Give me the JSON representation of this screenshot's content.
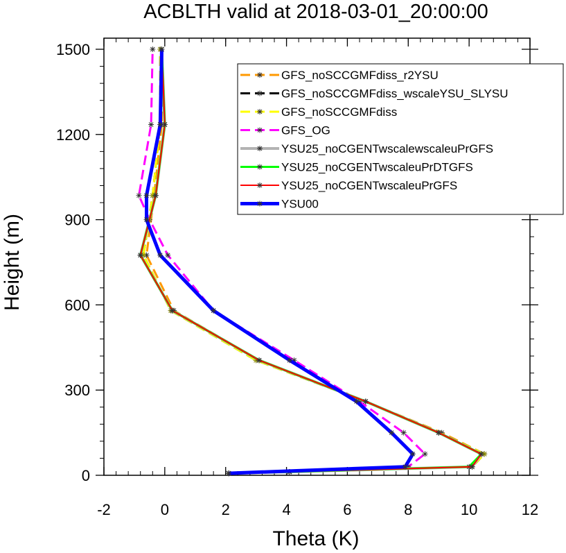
{
  "chart_data": {
    "type": "line",
    "title": "ACBLTH valid at 2018-03-01_20:00:00",
    "xlabel": "Theta (K)",
    "ylabel": "Height (m)",
    "xlim": [
      -2,
      12
    ],
    "ylim": [
      0,
      1500
    ],
    "xticks": [
      "-2",
      "0",
      "2",
      "4",
      "6",
      "8",
      "10",
      "12"
    ],
    "yticks": [
      "0",
      "300",
      "600",
      "900",
      "1200",
      "1500"
    ],
    "xtick_values": [
      -2,
      0,
      2,
      4,
      6,
      8,
      10,
      12
    ],
    "ytick_values": [
      0,
      300,
      600,
      900,
      1200,
      1500
    ],
    "grid": false,
    "legend_position": "top-right",
    "series": [
      {
        "name": "GFS_noSCCGMFdiss_r2YSU",
        "color": "#ff9900",
        "dash": "dashed",
        "width": 3,
        "x": [
          2.1,
          4.1,
          10.1,
          10.5,
          9.1,
          6.6,
          3.1,
          0.3,
          -0.6,
          -0.35,
          -0.1,
          -0.1
        ],
        "y": [
          7,
          12,
          30,
          75,
          150,
          260,
          405,
          580,
          775,
          985,
          1235,
          1500
        ]
      },
      {
        "name": "GFS_noSCCGMFdiss_wscaleYSU_SLYSU",
        "color": "#000000",
        "dash": "dashed",
        "width": 3,
        "x": [
          2.1,
          4.1,
          10.1,
          10.5,
          9.0,
          6.6,
          3.0,
          0.2,
          -0.7,
          -0.4,
          -0.15,
          -0.15
        ],
        "y": [
          7,
          12,
          30,
          75,
          150,
          260,
          405,
          580,
          775,
          985,
          1235,
          1500
        ]
      },
      {
        "name": "GFS_noSCCGMFdiss",
        "color": "#ffff00",
        "dash": "dashed",
        "width": 3,
        "x": [
          2.1,
          4.1,
          10.1,
          10.5,
          9.0,
          6.6,
          3.0,
          0.2,
          -0.7,
          -0.4,
          -0.15,
          -0.15
        ],
        "y": [
          7,
          12,
          30,
          75,
          150,
          260,
          405,
          580,
          775,
          985,
          1235,
          1500
        ]
      },
      {
        "name": "GFS_OG",
        "color": "#ff00ff",
        "dash": "dashed",
        "width": 3,
        "x": [
          2.1,
          8.0,
          8.55,
          7.85,
          6.4,
          4.25,
          1.6,
          0.1,
          -0.5,
          -0.85,
          -0.45,
          -0.4
        ],
        "y": [
          7,
          30,
          75,
          150,
          260,
          405,
          580,
          775,
          900,
          985,
          1235,
          1500
        ]
      },
      {
        "name": "YSU25_noCGENTwscalewscaleuPrGFS",
        "color": "#b3b3b3",
        "dash": "solid",
        "width": 4,
        "x": [
          2.1,
          4.1,
          10.1,
          10.4,
          9.0,
          6.6,
          3.1,
          0.25,
          -0.8,
          -0.3,
          0.0,
          -0.1
        ],
        "y": [
          7,
          12,
          30,
          75,
          150,
          260,
          405,
          580,
          775,
          985,
          1235,
          1500
        ]
      },
      {
        "name": "YSU25_noCGENTwscaleuPrDTGFS",
        "color": "#00ff00",
        "dash": "solid",
        "width": 3,
        "x": [
          2.1,
          4.1,
          10.0,
          10.4,
          9.0,
          6.6,
          3.1,
          0.25,
          -0.8,
          -0.3,
          0.0,
          -0.1
        ],
        "y": [
          7,
          12,
          30,
          75,
          150,
          260,
          405,
          580,
          775,
          985,
          1235,
          1500
        ]
      },
      {
        "name": "YSU25_noCGENTwscaleuPrGFS",
        "color": "#ff0000",
        "dash": "solid",
        "width": 2,
        "x": [
          2.1,
          4.1,
          10.1,
          10.4,
          9.0,
          6.6,
          3.1,
          0.25,
          -0.8,
          -0.3,
          0.0,
          -0.1
        ],
        "y": [
          7,
          12,
          30,
          75,
          150,
          260,
          405,
          580,
          775,
          985,
          1235,
          1500
        ]
      },
      {
        "name": "YSU00",
        "color": "#0000ff",
        "dash": "solid",
        "width": 5,
        "x": [
          2.1,
          7.9,
          8.15,
          7.45,
          6.3,
          4.1,
          1.6,
          -0.15,
          -0.6,
          -0.6,
          -0.15,
          -0.1
        ],
        "y": [
          7,
          30,
          75,
          150,
          260,
          405,
          580,
          775,
          900,
          985,
          1235,
          1500
        ]
      }
    ]
  }
}
